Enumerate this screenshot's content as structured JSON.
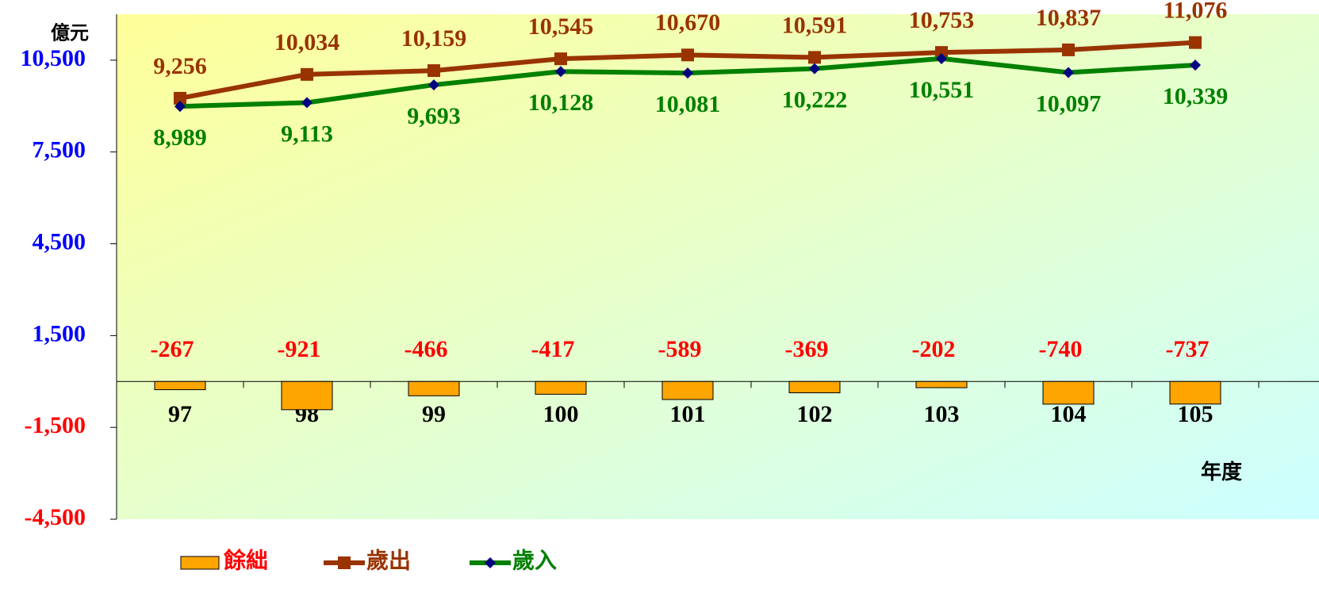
{
  "chart_data": {
    "type": "bar",
    "y_axis_label": "億元",
    "x_axis_label": "年度",
    "categories": [
      "97",
      "98",
      "99",
      "100",
      "101",
      "102",
      "103",
      "104",
      "105"
    ],
    "ylim": [
      -4500,
      12000
    ],
    "yticks": [
      {
        "value": -4500,
        "label": "-4,500"
      },
      {
        "value": -1500,
        "label": "-1,500"
      },
      {
        "value": 1500,
        "label": "1,500"
      },
      {
        "value": 4500,
        "label": "4,500"
      },
      {
        "value": 7500,
        "label": "7,500"
      },
      {
        "value": 10500,
        "label": "10,500"
      }
    ],
    "series": [
      {
        "name": "餘絀",
        "type": "bar",
        "color": "#ffa500",
        "label_color": "#ff0000",
        "values": [
          -267,
          -921,
          -466,
          -417,
          -589,
          -369,
          -202,
          -740,
          -737
        ]
      },
      {
        "name": "歲出",
        "type": "line",
        "marker": "square",
        "color": "#993300",
        "marker_color": "#993300",
        "label_color": "#993300",
        "values": [
          9256,
          10034,
          10159,
          10545,
          10670,
          10591,
          10753,
          10837,
          11076
        ],
        "value_labels": [
          "9,256",
          "10,034",
          "10,159",
          "10,545",
          "10,670",
          "10,591",
          "10,753",
          "10,837",
          "11,076"
        ]
      },
      {
        "name": "歲入",
        "type": "line",
        "marker": "diamond",
        "color": "#008000",
        "marker_color": "#000080",
        "label_color": "#008000",
        "values": [
          8989,
          9113,
          9693,
          10128,
          10081,
          10222,
          10551,
          10097,
          10339
        ],
        "value_labels": [
          "8,989",
          "9,113",
          "9,693",
          "10,128",
          "10,081",
          "10,222",
          "10,551",
          "10,097",
          "10,339"
        ]
      }
    ]
  }
}
